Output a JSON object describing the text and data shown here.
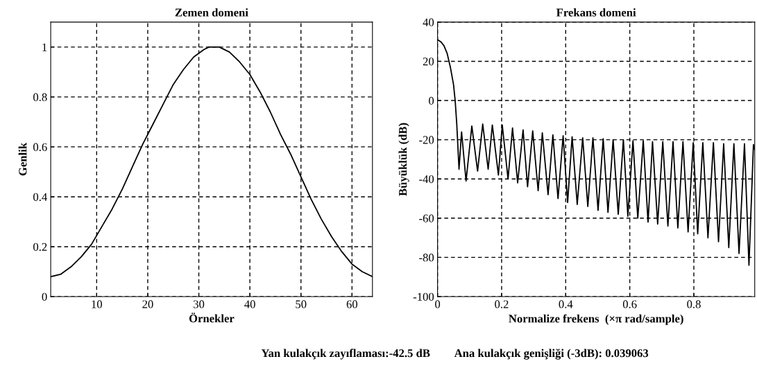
{
  "chart_data": [
    {
      "type": "line",
      "title": "Zemen domeni",
      "xlabel": "Örnekler",
      "ylabel": "Genlik",
      "series": [
        {
          "color": "#000000",
          "x": [
            1,
            3,
            5,
            7,
            9,
            11,
            13,
            15,
            17,
            19,
            21,
            23,
            25,
            27,
            29,
            31,
            32,
            34,
            36,
            38,
            40,
            42,
            44,
            46,
            48,
            50,
            52,
            54,
            56,
            58,
            60,
            62,
            64
          ],
          "values": [
            0.08,
            0.09,
            0.12,
            0.16,
            0.21,
            0.28,
            0.35,
            0.43,
            0.52,
            0.61,
            0.69,
            0.77,
            0.85,
            0.91,
            0.96,
            0.99,
            1.0,
            1.0,
            0.98,
            0.94,
            0.89,
            0.82,
            0.74,
            0.65,
            0.57,
            0.48,
            0.39,
            0.31,
            0.24,
            0.18,
            0.13,
            0.1,
            0.08
          ]
        }
      ],
      "xlim": [
        1,
        64
      ],
      "ylim": [
        0,
        1.1
      ],
      "xticks": [
        10,
        20,
        30,
        40,
        50,
        60
      ],
      "yticks": [
        0,
        0.2,
        0.4,
        0.6,
        0.8,
        1
      ],
      "grid": true,
      "line_style": "solid"
    },
    {
      "type": "line",
      "title": "Frekans domeni",
      "xlabel": "Normalize frekens  (×π rad/sample)",
      "ylabel": "Büyüklük (dB)",
      "series": [
        {
          "color": "#000000",
          "x": [
            0,
            0.01,
            0.02,
            0.03,
            0.04,
            0.05,
            0.055,
            0.06,
            0.067,
            0.075,
            0.089,
            0.107,
            0.125,
            0.141,
            0.158,
            0.171,
            0.19,
            0.202,
            0.22,
            0.234,
            0.25,
            0.267,
            0.281,
            0.297,
            0.314,
            0.327,
            0.345,
            0.36,
            0.376,
            0.392,
            0.406,
            0.42,
            0.436,
            0.453,
            0.469,
            0.485,
            0.501,
            0.517,
            0.532,
            0.548,
            0.564,
            0.58,
            0.594,
            0.61,
            0.625,
            0.642,
            0.657,
            0.671,
            0.687,
            0.703,
            0.719,
            0.735,
            0.75,
            0.766,
            0.782,
            0.798,
            0.812,
            0.828,
            0.844,
            0.861,
            0.877,
            0.893,
            0.909,
            0.925,
            0.941,
            0.958,
            0.972,
            0.986,
            0.99
          ],
          "values": [
            31,
            30,
            28,
            24,
            17,
            8,
            0,
            -12,
            -35,
            -16,
            -41,
            -13,
            -36,
            -12,
            -35,
            -12.5,
            -38,
            -12.5,
            -40,
            -14,
            -42,
            -15,
            -44,
            -15.5,
            -46,
            -16.5,
            -48,
            -17.5,
            -50,
            -18,
            -52,
            -18.5,
            -53,
            -19,
            -54,
            -19,
            -56,
            -19.5,
            -57,
            -20,
            -58,
            -20,
            -59,
            -20.5,
            -60,
            -20.5,
            -62,
            -21,
            -63,
            -21,
            -64,
            -21,
            -65,
            -21,
            -67,
            -21.5,
            -68,
            -21.5,
            -70,
            -21.5,
            -72,
            -22,
            -75,
            -22,
            -78,
            -22,
            -84,
            -22.5,
            -25
          ]
        }
      ],
      "xlim": [
        0,
        0.99
      ],
      "ylim": [
        -100,
        40
      ],
      "xticks": [
        0,
        0.2,
        0.4,
        0.6,
        0.8
      ],
      "yticks": [
        -100,
        -80,
        -60,
        -40,
        -20,
        0,
        20,
        40
      ],
      "grid": true,
      "line_style": "solid",
      "annotations": [
        "Yan kulakçık zayıflaması:-42.5 dB",
        "Ana kulakçık genişliği (-3dB): 0.039063"
      ]
    }
  ]
}
